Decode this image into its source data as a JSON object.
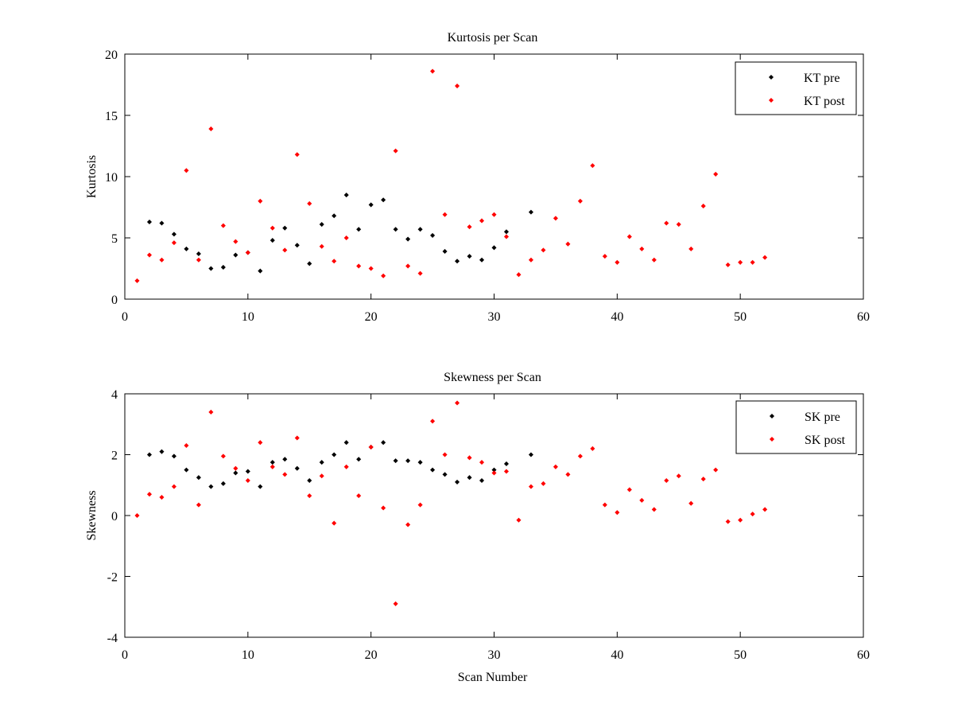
{
  "chart_data": [
    {
      "type": "scatter",
      "title": "Kurtosis per Scan",
      "xlabel": "",
      "ylabel": "Kurtosis",
      "xlim": [
        0,
        60
      ],
      "ylim": [
        0,
        20
      ],
      "xticks": [
        0,
        10,
        20,
        30,
        40,
        50,
        60
      ],
      "yticks": [
        0,
        5,
        10,
        15,
        20
      ],
      "xtick_labels": [
        "0",
        "10",
        "20",
        "30",
        "40",
        "50",
        "60"
      ],
      "ytick_labels": [
        "0",
        "5",
        "10",
        "15",
        "20"
      ],
      "grid": false,
      "legend_position": "top-right",
      "series": [
        {
          "name": "KT pre",
          "color": "#000000",
          "marker": "diamond",
          "x": [
            2,
            3,
            4,
            5,
            6,
            7,
            8,
            9,
            10,
            11,
            12,
            13,
            14,
            15,
            16,
            17,
            18,
            19,
            20,
            21,
            22,
            23,
            24,
            25,
            26,
            27,
            28,
            29,
            30,
            31,
            33
          ],
          "y": [
            6.3,
            6.2,
            5.3,
            4.1,
            3.7,
            2.5,
            2.6,
            3.6,
            3.8,
            2.3,
            4.8,
            5.8,
            4.4,
            2.9,
            6.1,
            6.8,
            8.5,
            5.7,
            7.7,
            8.1,
            5.7,
            4.9,
            5.7,
            5.2,
            3.9,
            3.1,
            3.5,
            3.2,
            4.2,
            5.5,
            7.1
          ]
        },
        {
          "name": "KT post",
          "color": "#ff0000",
          "marker": "diamond",
          "x": [
            1,
            2,
            3,
            4,
            5,
            6,
            7,
            8,
            9,
            10,
            11,
            12,
            13,
            14,
            15,
            16,
            17,
            18,
            19,
            20,
            21,
            22,
            23,
            24,
            25,
            26,
            27,
            28,
            29,
            30,
            31,
            32,
            33,
            34,
            35,
            36,
            37,
            38,
            39,
            40,
            41,
            42,
            43,
            44,
            45,
            46,
            47,
            48,
            49,
            50,
            51,
            52
          ],
          "y": [
            1.5,
            3.6,
            3.2,
            4.6,
            10.5,
            3.2,
            13.9,
            6.0,
            4.7,
            3.8,
            8.0,
            5.8,
            4.0,
            11.8,
            7.8,
            4.3,
            3.1,
            5.0,
            2.7,
            2.5,
            1.9,
            12.1,
            2.7,
            2.1,
            18.6,
            6.9,
            17.4,
            5.9,
            6.4,
            6.9,
            5.1,
            2.0,
            3.2,
            4.0,
            6.6,
            4.5,
            8.0,
            10.9,
            3.5,
            3.0,
            5.1,
            4.1,
            3.2,
            6.2,
            6.1,
            4.1,
            7.6,
            10.2,
            2.8,
            3.0,
            3.0,
            3.4
          ]
        }
      ]
    },
    {
      "type": "scatter",
      "title": "Skewness per Scan",
      "xlabel": "Scan Number",
      "ylabel": "Skewness",
      "xlim": [
        0,
        60
      ],
      "ylim": [
        -4,
        4
      ],
      "xticks": [
        0,
        10,
        20,
        30,
        40,
        50,
        60
      ],
      "yticks": [
        -4,
        -2,
        0,
        2,
        4
      ],
      "xtick_labels": [
        "0",
        "10",
        "20",
        "30",
        "40",
        "50",
        "60"
      ],
      "ytick_labels": [
        "-4",
        "-2",
        "0",
        "2",
        "4"
      ],
      "grid": false,
      "legend_position": "top-right",
      "series": [
        {
          "name": "SK pre",
          "color": "#000000",
          "marker": "diamond",
          "x": [
            2,
            3,
            4,
            5,
            6,
            7,
            8,
            9,
            10,
            11,
            12,
            13,
            14,
            15,
            16,
            17,
            18,
            19,
            20,
            21,
            22,
            23,
            24,
            25,
            26,
            27,
            28,
            29,
            30,
            31,
            33
          ],
          "y": [
            2.0,
            2.1,
            1.95,
            1.5,
            1.25,
            0.95,
            1.05,
            1.4,
            1.45,
            0.95,
            1.75,
            1.85,
            1.55,
            1.15,
            1.75,
            2.0,
            2.4,
            1.85,
            2.25,
            2.4,
            1.8,
            1.8,
            1.75,
            1.5,
            1.35,
            1.1,
            1.25,
            1.15,
            1.5,
            1.7,
            2.0
          ]
        },
        {
          "name": "SK post",
          "color": "#ff0000",
          "marker": "diamond",
          "x": [
            1,
            2,
            3,
            4,
            5,
            6,
            7,
            8,
            9,
            10,
            11,
            12,
            13,
            14,
            15,
            16,
            17,
            18,
            19,
            20,
            21,
            22,
            23,
            24,
            25,
            26,
            27,
            28,
            29,
            30,
            31,
            32,
            33,
            34,
            35,
            36,
            37,
            38,
            39,
            40,
            41,
            42,
            43,
            44,
            45,
            46,
            47,
            48,
            49,
            50,
            51,
            52
          ],
          "y": [
            0.0,
            0.7,
            0.6,
            0.95,
            2.3,
            0.35,
            3.4,
            1.95,
            1.55,
            1.15,
            2.4,
            1.6,
            1.35,
            2.55,
            0.65,
            1.3,
            -0.25,
            1.6,
            0.65,
            2.25,
            0.25,
            -2.9,
            -0.3,
            0.35,
            3.1,
            2.0,
            3.7,
            1.9,
            1.75,
            1.4,
            1.45,
            -0.15,
            0.95,
            1.05,
            1.6,
            1.35,
            1.95,
            2.2,
            0.35,
            0.1,
            0.85,
            0.5,
            0.2,
            1.15,
            1.3,
            0.4,
            1.2,
            1.5,
            -0.2,
            -0.15,
            0.05,
            0.2
          ]
        }
      ]
    }
  ]
}
